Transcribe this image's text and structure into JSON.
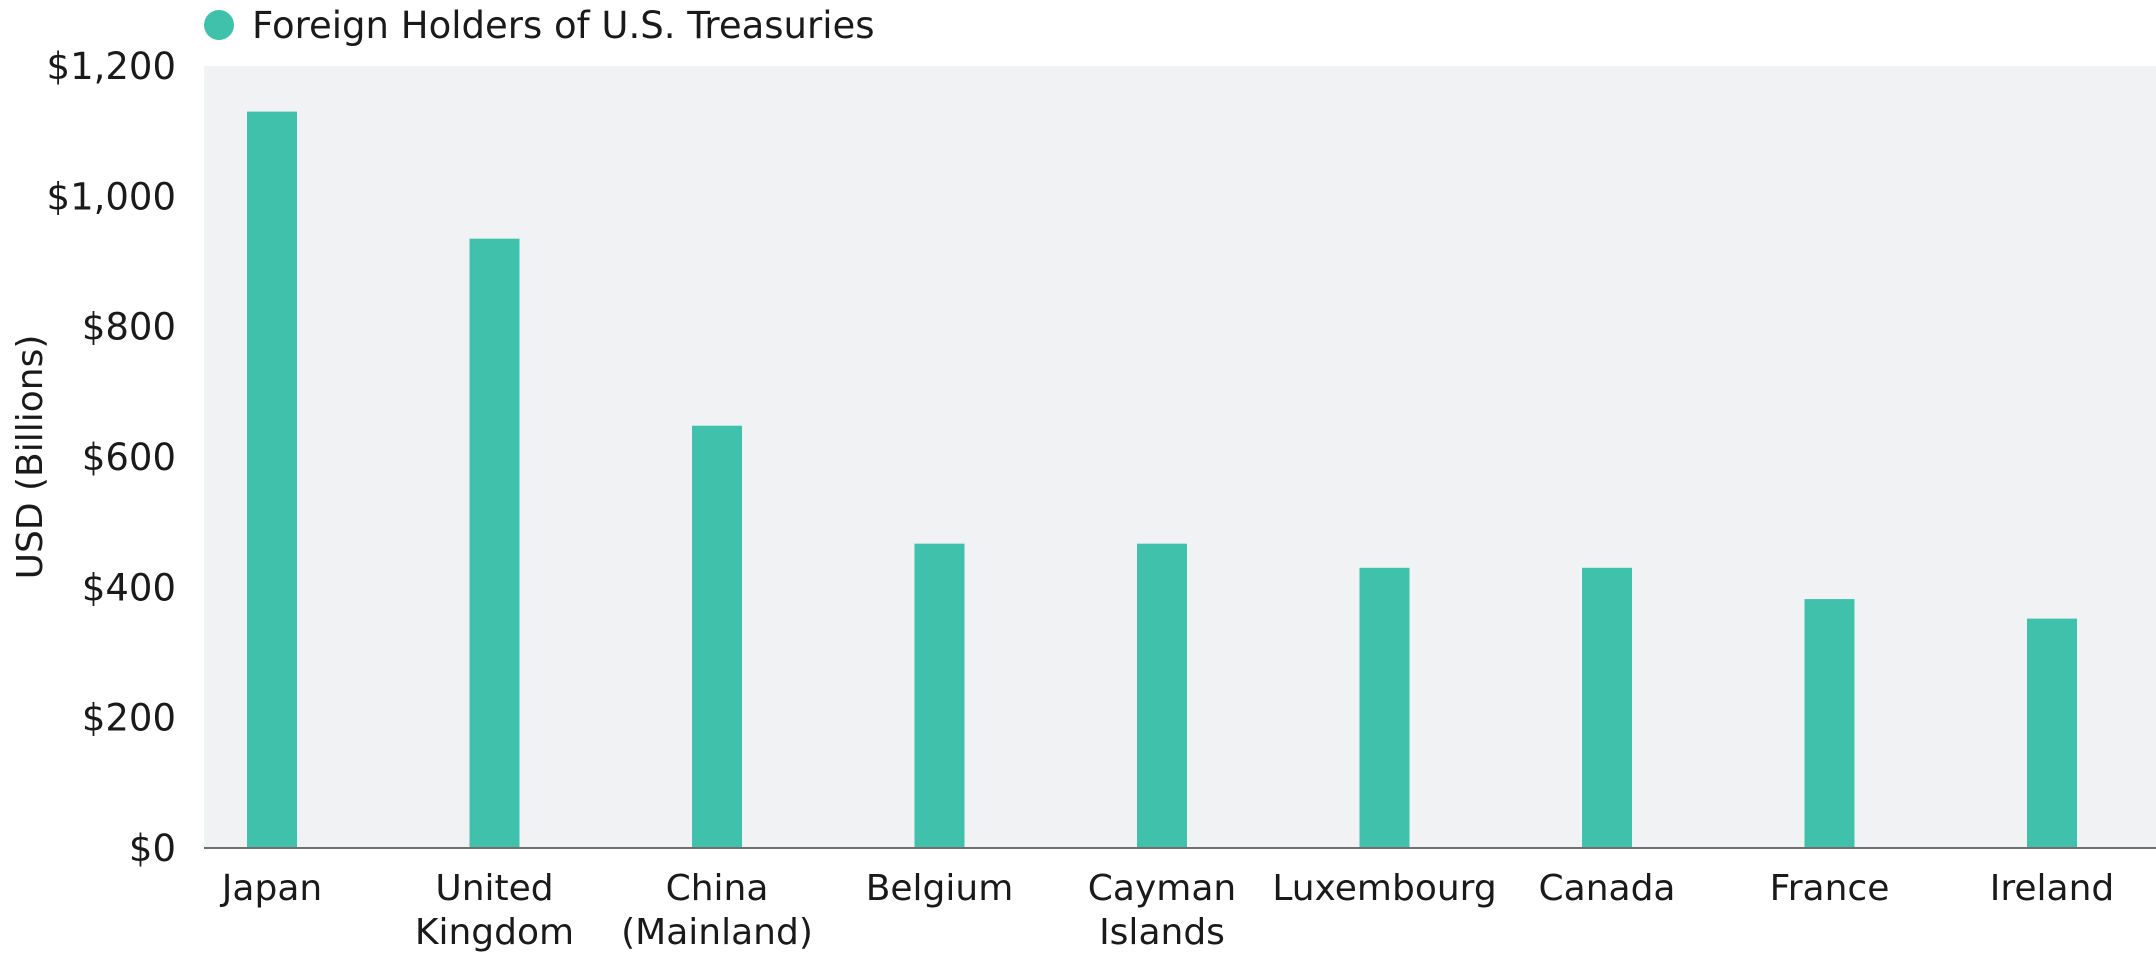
{
  "chart_data": {
    "type": "bar",
    "title": "",
    "xlabel": "",
    "ylabel": "USD (Billions)",
    "ylim": [
      0,
      1200
    ],
    "yticks": [
      0,
      200,
      400,
      600,
      800,
      1000,
      1200
    ],
    "ytick_labels": [
      "$0",
      "$200",
      "$400",
      "$600",
      "$800",
      "$1,000",
      "$1,200"
    ],
    "grid": false,
    "legend_position": "top-left",
    "categories": [
      [
        "Japan"
      ],
      [
        "United",
        "Kingdom"
      ],
      [
        "China",
        "(Mainland)"
      ],
      [
        "Belgium"
      ],
      [
        "Cayman",
        "Islands"
      ],
      [
        "Luxembourg"
      ],
      [
        "Canada"
      ],
      [
        "France"
      ],
      [
        "Ireland"
      ]
    ],
    "series": [
      {
        "name": "Foreign Holders of U.S. Treasuries",
        "color": "#40c1ac",
        "values": [
          1130,
          935,
          648,
          467,
          467,
          430,
          430,
          382,
          352
        ]
      }
    ],
    "plot_background": "#f1f2f4"
  }
}
